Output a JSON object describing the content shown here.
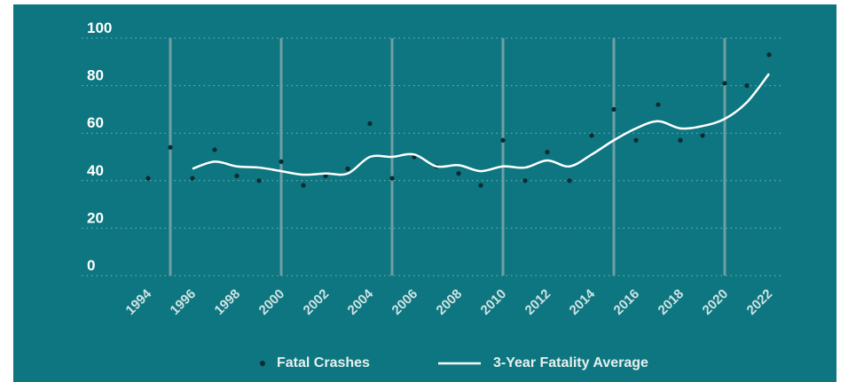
{
  "chart_data": {
    "type": "scatter",
    "series": [
      {
        "name": "Fatal Crashes",
        "type": "scatter",
        "color": "#0b2a30",
        "x": [
          1994,
          1995,
          1996,
          1997,
          1998,
          1999,
          2000,
          2001,
          2002,
          2003,
          2004,
          2005,
          2006,
          2007,
          2008,
          2009,
          2010,
          2011,
          2012,
          2013,
          2014,
          2015,
          2016,
          2017,
          2018,
          2019,
          2020,
          2021,
          2022
        ],
        "values": [
          41,
          54,
          41,
          53,
          42,
          40,
          48,
          38,
          42,
          45,
          64,
          41,
          50,
          46,
          43,
          38,
          57,
          40,
          52,
          40,
          59,
          70,
          57,
          72,
          57,
          59,
          81,
          80,
          93
        ]
      },
      {
        "name": "3-Year Fatality Average",
        "type": "line",
        "color": "#ffffff",
        "x": [
          1996,
          1997,
          1998,
          1999,
          2000,
          2001,
          2002,
          2003,
          2004,
          2005,
          2006,
          2007,
          2008,
          2009,
          2010,
          2011,
          2012,
          2013,
          2014,
          2015,
          2016,
          2017,
          2018,
          2019,
          2020,
          2021,
          2022
        ],
        "values": [
          45,
          48,
          46,
          45.5,
          44,
          42.5,
          43,
          43,
          50,
          50,
          51,
          46,
          46.5,
          44,
          46,
          45.5,
          48.5,
          46,
          51,
          57,
          62,
          65,
          62,
          63,
          66,
          73,
          85
        ]
      }
    ],
    "xlim": [
      1991,
      2022.52
    ],
    "xticks": [
      1994,
      1996,
      1998,
      2000,
      2002,
      2004,
      2006,
      2008,
      2010,
      2012,
      2014,
      2016,
      2018,
      2020,
      2022
    ],
    "xgrid": [
      1995,
      2000,
      2005,
      2010,
      2015,
      2020
    ],
    "ylim": [
      0,
      100
    ],
    "yticks": [
      0,
      20,
      40,
      60,
      80,
      100
    ],
    "grid": true
  }
}
